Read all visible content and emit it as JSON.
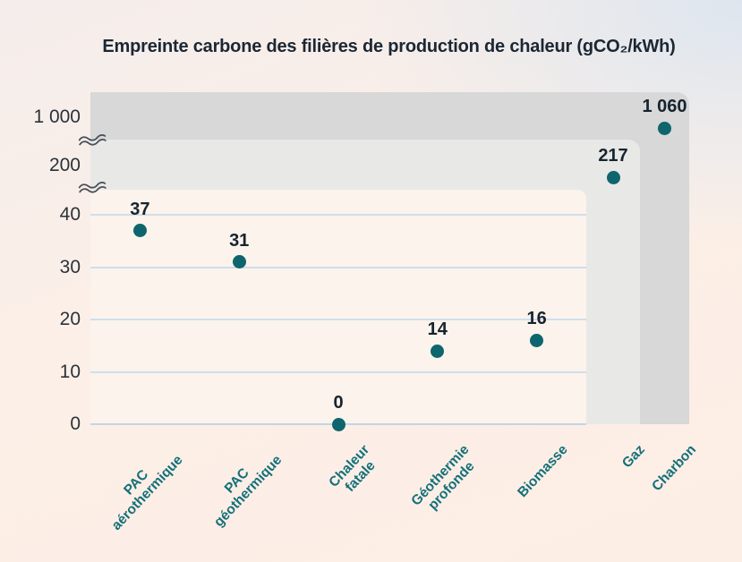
{
  "title": "Empreinte carbone des filières de production de chaleur (gCO₂/kWh)",
  "chart_data": {
    "type": "scatter",
    "title": "Empreinte carbone des filières de production de chaleur (gCO₂/kWh)",
    "unit": "gCO₂/kWh",
    "categories": [
      "PAC aérothermique",
      "PAC géothermique",
      "Chaleur fatale",
      "Géothermie profonde",
      "Biomasse",
      "Gaz",
      "Charbon"
    ],
    "category_label_lines": [
      [
        "PAC",
        "aérothermique"
      ],
      [
        "PAC",
        "géothermique"
      ],
      [
        "Chaleur",
        "fatale"
      ],
      [
        "Géothermie",
        "profonde"
      ],
      [
        "Biomasse"
      ],
      [
        "Gaz"
      ],
      [
        "Charbon"
      ]
    ],
    "values": [
      37,
      31,
      0,
      14,
      16,
      217,
      1060
    ],
    "value_labels": [
      "37",
      "31",
      "0",
      "14",
      "16",
      "217",
      "1 060"
    ],
    "y_ticks": [
      {
        "value": 0,
        "label": "0"
      },
      {
        "value": 10,
        "label": "10"
      },
      {
        "value": 20,
        "label": "20"
      },
      {
        "value": 30,
        "label": "30"
      },
      {
        "value": 40,
        "label": "40"
      },
      {
        "value": 200,
        "label": "200"
      },
      {
        "value": 1000,
        "label": "1 000"
      }
    ],
    "ylim_main": [
      0,
      40
    ],
    "axis_breaks": 2,
    "grid": "horizontal",
    "legend_position": "none",
    "colors": {
      "dot": "#0e656d",
      "category_label": "#147079",
      "value_label": "#16242f",
      "tick_label": "#2b323a",
      "grid_line": "#cfdeec",
      "band_dark": "#d7d8d7",
      "band_light": "#e8e8e7",
      "plot_bg": "#fbf3ec",
      "title_color": "#1b2733",
      "break_mark": "#4a5058"
    }
  }
}
